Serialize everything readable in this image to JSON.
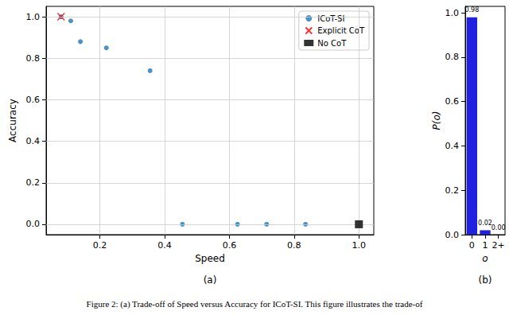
{
  "chart_data": [
    {
      "type": "scatter",
      "title": "(a)",
      "x_label": "Speed",
      "y_label": "Accuracy",
      "xlim": [
        0.034,
        1.046
      ],
      "xticks": [
        0.2,
        0.4,
        0.6,
        0.8,
        {
          "value": 1,
          "label": "1.0"
        }
      ],
      "ylim": [
        -0.05,
        1.05
      ],
      "yticks": [
        {
          "value": 0,
          "label": "0.0"
        },
        0.2,
        0.4,
        0.6,
        0.8,
        {
          "value": 1,
          "label": "1.0"
        }
      ],
      "grid": true,
      "legend": "upper right",
      "series": [
        {
          "name": "ICoT-SI",
          "color": "#1f77b4",
          "marker": "circle",
          "x": [
            0.08,
            0.11,
            0.14,
            0.22,
            0.355,
            0.455,
            0.625,
            0.715,
            0.835
          ],
          "values": [
            1.0,
            0.98,
            0.88,
            0.85,
            0.74,
            0.0,
            0.0,
            0.0,
            0.0
          ]
        },
        {
          "name": "Explicit CoT",
          "color": "#ff0000",
          "marker": "x",
          "x": [
            0.08
          ],
          "values": [
            1.0
          ]
        },
        {
          "name": "No CoT",
          "color": "#000000",
          "marker": "square",
          "x": [
            1.0
          ],
          "values": [
            0.0
          ]
        }
      ]
    },
    {
      "type": "bar",
      "title": "(b)",
      "x_label": "o",
      "y_label": "P(o)",
      "categories": [
        "0",
        "1",
        "2+"
      ],
      "values": [
        0.98,
        0.02,
        0.0
      ],
      "value_labels": [
        "0.98",
        "0.02",
        "0.00"
      ],
      "data_labels": true,
      "color": "#2121e0",
      "grid": false,
      "ylim": [
        0,
        1.029
      ],
      "yticks": [
        {
          "value": 0,
          "label": "0.0"
        },
        0.2,
        0.4,
        0.6,
        0.8,
        {
          "value": 1,
          "label": "1.0"
        }
      ]
    }
  ],
  "caption": "Figure 2: (a) Trade-off of Speed versus Accuracy for ICoT-SI. This figure illustrates the trade-of"
}
